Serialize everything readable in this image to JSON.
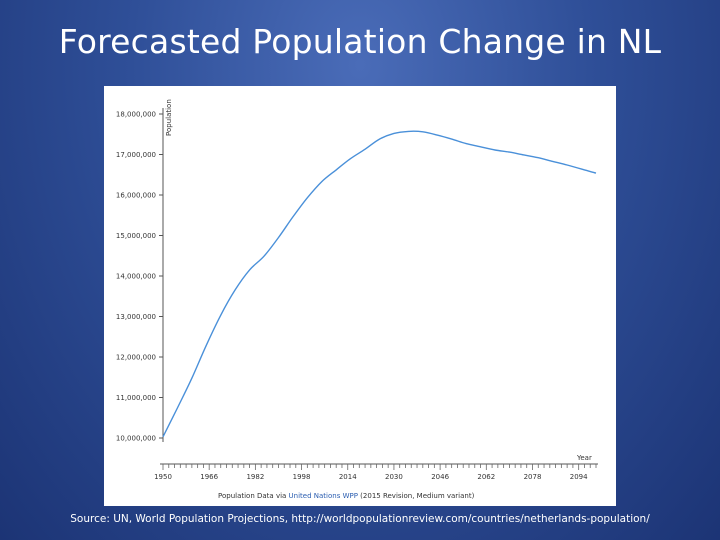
{
  "slide": {
    "title": "Forecasted Population Change in NL",
    "source": "Source: UN, World Population Projections, http://worldpopulationreview.com/countries/netherlands-population/"
  },
  "colors": {
    "background": "#2f4f98",
    "line": "#4a90d9",
    "link": "#2a5db0"
  },
  "chart_data": {
    "type": "line",
    "title": "",
    "xlabel": "Year",
    "ylabel": "Population",
    "ylim": [
      10000000,
      18000000
    ],
    "xlim": [
      1950,
      2100
    ],
    "y_ticks": [
      10000000,
      11000000,
      12000000,
      13000000,
      14000000,
      15000000,
      16000000,
      17000000,
      18000000
    ],
    "y_tick_labels": [
      "10,000,000",
      "11,000,000",
      "12,000,000",
      "13,000,000",
      "14,000,000",
      "15,000,000",
      "16,000,000",
      "17,000,000",
      "18,000,000"
    ],
    "x_ticks": [
      1950,
      1966,
      1982,
      1998,
      2014,
      2030,
      2046,
      2062,
      2078,
      2094
    ],
    "x_tick_labels": [
      "1950",
      "1966",
      "1982",
      "1998",
      "2014",
      "2030",
      "2046",
      "2062",
      "2078",
      "2094"
    ],
    "grid": false,
    "series": [
      {
        "x": [
          1950,
          1955,
          1960,
          1965,
          1970,
          1975,
          1980,
          1985,
          1990,
          1995,
          2000,
          2005,
          2010,
          2015,
          2020,
          2025,
          2030,
          2035,
          2040,
          2045,
          2050,
          2055,
          2060,
          2065,
          2070,
          2075,
          2080,
          2085,
          2090,
          2095,
          2100
        ],
        "values": [
          10030000,
          10740000,
          11480000,
          12290000,
          13030000,
          13660000,
          14150000,
          14490000,
          14950000,
          15460000,
          15930000,
          16330000,
          16620000,
          16900000,
          17130000,
          17380000,
          17520000,
          17570000,
          17560000,
          17480000,
          17380000,
          17270000,
          17190000,
          17110000,
          17060000,
          16990000,
          16920000,
          16830000,
          16740000,
          16640000,
          16540000
        ]
      }
    ],
    "attribution": {
      "prefix": "Population Data via ",
      "link": "United Nations WPP",
      "suffix": " (2015 Revision, Medium variant)"
    }
  }
}
